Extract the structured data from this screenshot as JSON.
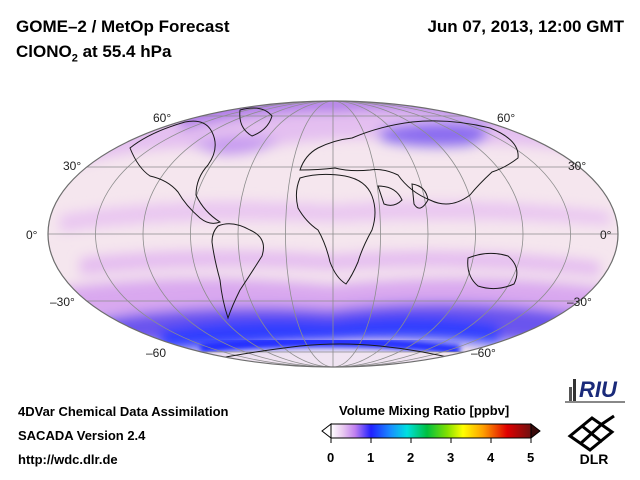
{
  "header": {
    "title": "GOME–2 / MetOp Forecast",
    "species_prefix": "ClONO",
    "species_subscript": "2",
    "species_suffix": " at 55.4 hPa",
    "datetime": "Jun 07, 2013, 12:00 GMT"
  },
  "map": {
    "projection": "Mollweide",
    "lat_labels_left": [
      "60°",
      "30°",
      "0°",
      "–30°",
      "–60"
    ],
    "lat_labels_right": [
      "60°",
      "30°",
      "0°",
      "–30°",
      "–60°"
    ]
  },
  "colorbar": {
    "title": "Volume Mixing Ratio [ppbv]",
    "ticks": [
      "0",
      "1",
      "2",
      "3",
      "4",
      "5"
    ],
    "range": [
      0,
      5
    ]
  },
  "footer": {
    "line1": "4DVar Chemical Data Assimilation",
    "line2": "SACADA Version 2.4",
    "line3": "http://wdc.dlr.de"
  },
  "logos": {
    "riu_text": "RIU",
    "dlr_text": "DLR"
  }
}
